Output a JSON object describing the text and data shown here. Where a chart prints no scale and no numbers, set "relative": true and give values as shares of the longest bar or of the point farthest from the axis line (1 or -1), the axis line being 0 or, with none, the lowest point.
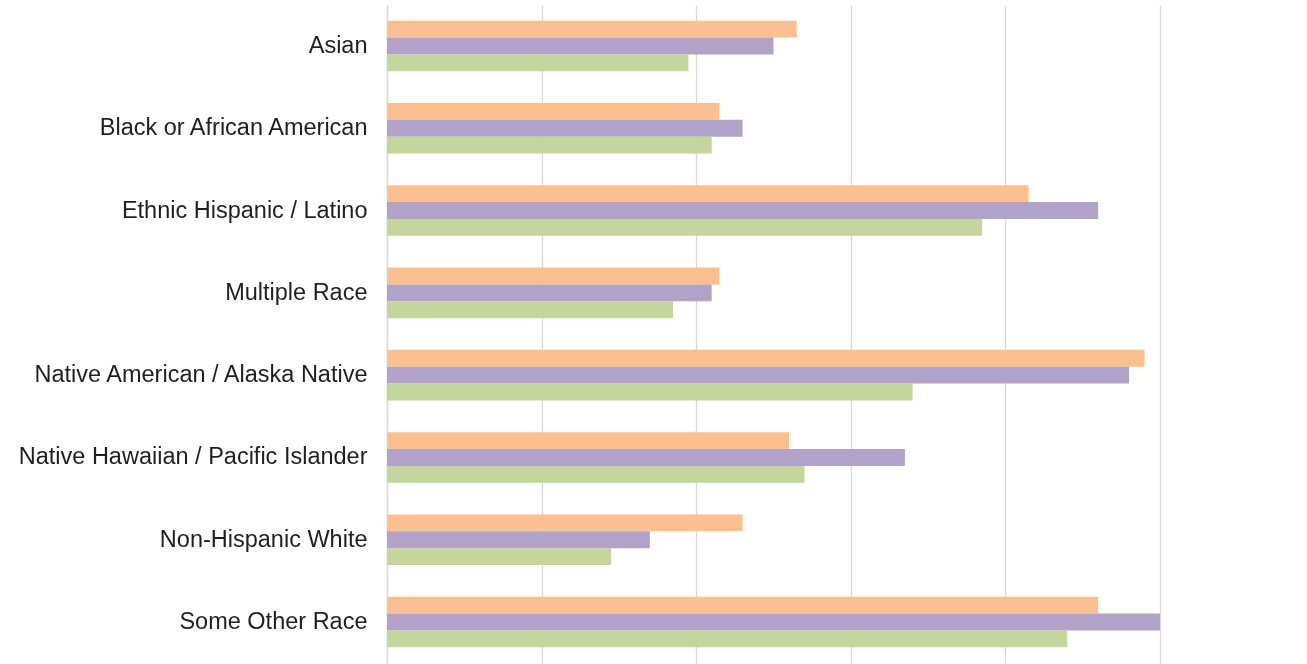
{
  "chart_data": {
    "type": "bar",
    "orientation": "horizontal",
    "relative": true,
    "grid": "x",
    "categories": [
      "Asian",
      "Black or African American",
      "Ethnic Hispanic / Latino",
      "Multiple Race",
      "Native American / Alaska Native",
      "Native Hawaiian / Pacific Islander",
      "Non-Hispanic White",
      "Some Other Race"
    ],
    "series": [
      {
        "color": "#fac090",
        "values": [
          0.53,
          0.43,
          0.83,
          0.43,
          0.98,
          0.52,
          0.46,
          0.92
        ]
      },
      {
        "color": "#b3a2c7",
        "values": [
          0.5,
          0.46,
          0.92,
          0.42,
          0.96,
          0.67,
          0.34,
          1
        ]
      },
      {
        "color": "#c3d69b",
        "values": [
          0.39,
          0.42,
          0.77,
          0.37,
          0.68,
          0.54,
          0.29,
          0.88
        ]
      }
    ]
  }
}
